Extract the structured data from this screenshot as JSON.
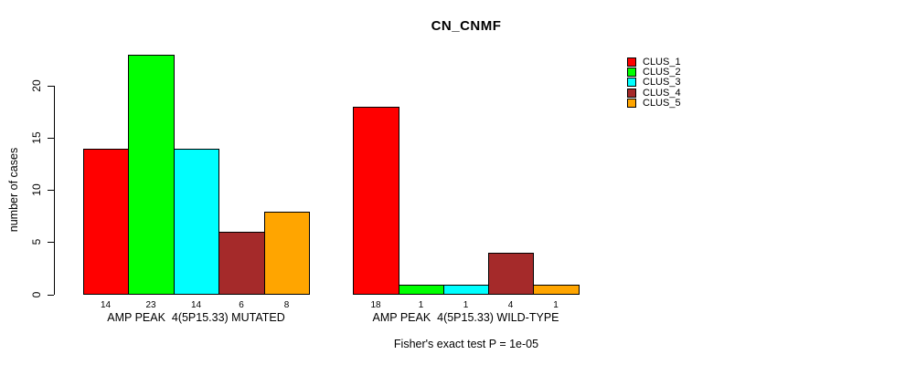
{
  "title": "CN_CNMF",
  "ylabel": "number of cases",
  "fisher_note": "Fisher's exact test P = 1e-05",
  "legend": {
    "position": "right",
    "items": [
      {
        "label": "CLUS_1",
        "color": "#FF0000"
      },
      {
        "label": "CLUS_2",
        "color": "#00FF00"
      },
      {
        "label": "CLUS_3",
        "color": "#00FFFF"
      },
      {
        "label": "CLUS_4",
        "color": "#A52A2A"
      },
      {
        "label": "CLUS_5",
        "color": "#FFA500"
      }
    ]
  },
  "chart_data": {
    "type": "bar",
    "title": "CN_CNMF",
    "xlabel": "",
    "ylabel": "number of cases",
    "ylim": [
      0,
      23
    ],
    "yticks": [
      0,
      5,
      10,
      15,
      20
    ],
    "ytick_labels": [
      "0",
      "5",
      "10",
      "15",
      "20"
    ],
    "grid": false,
    "legend_position": "right",
    "series_names": [
      "CLUS_1",
      "CLUS_2",
      "CLUS_3",
      "CLUS_4",
      "CLUS_5"
    ],
    "colors": [
      "#FF0000",
      "#00FF00",
      "#00FFFF",
      "#A52A2A",
      "#FFA500"
    ],
    "groups": [
      {
        "label": "AMP PEAK  4(5P15.33) MUTATED",
        "categories": [
          "CLUS_1",
          "CLUS_2",
          "CLUS_3",
          "CLUS_4",
          "CLUS_5"
        ],
        "values": [
          14,
          23,
          14,
          6,
          8
        ]
      },
      {
        "label": "AMP PEAK  4(5P15.33) WILD-TYPE",
        "categories": [
          "CLUS_1",
          "CLUS_2",
          "CLUS_3",
          "CLUS_4",
          "CLUS_5"
        ],
        "values": [
          18,
          1,
          1,
          4,
          1
        ]
      }
    ],
    "annotation": "Fisher's exact test P = 1e-05",
    "bar_borders": "#000000",
    "background": "#FFFFFF"
  }
}
